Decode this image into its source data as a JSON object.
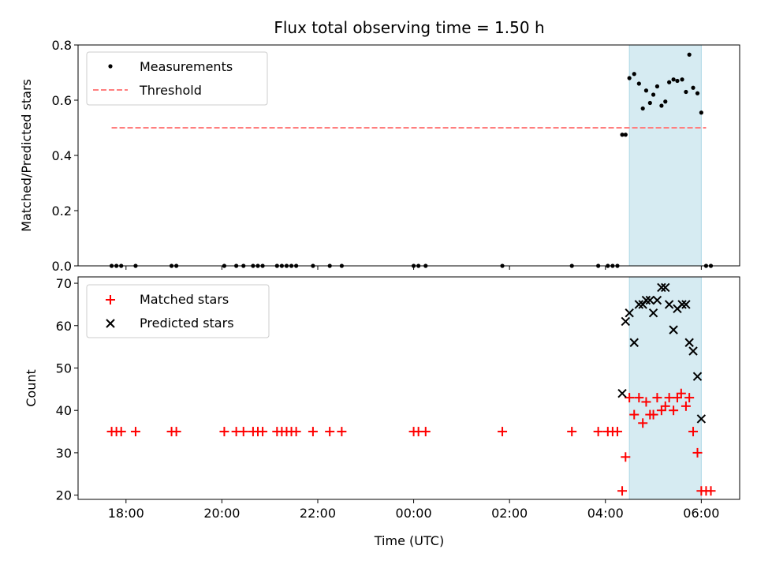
{
  "chart_data": [
    {
      "type": "scatter",
      "title": "Flux total observing time = 1.50 h",
      "xlabel": "",
      "ylabel": "Matched/Predicted stars",
      "ylim": [
        0,
        0.8
      ],
      "yticks": [
        "0.0",
        "0.2",
        "0.4",
        "0.6",
        "0.8"
      ],
      "xlim_hours": [
        -7.0,
        6.8
      ],
      "shaded_span_hours": [
        4.5,
        6.0
      ],
      "shade_color": "#add8e6",
      "legend": {
        "placement": "upper-left",
        "entries": [
          "Measurements",
          "Threshold"
        ]
      },
      "threshold": {
        "name": "Threshold",
        "value": 0.5,
        "x_range_hours": [
          -6.3,
          6.1
        ],
        "color": "#ff7f7f"
      },
      "series": [
        {
          "name": "Measurements",
          "color": "#000000",
          "points": [
            [
              -6.3,
              0
            ],
            [
              -6.2,
              0
            ],
            [
              -6.1,
              0
            ],
            [
              -5.8,
              0
            ],
            [
              -5.05,
              0
            ],
            [
              -4.95,
              0
            ],
            [
              -3.95,
              0
            ],
            [
              -3.7,
              0
            ],
            [
              -3.55,
              0
            ],
            [
              -3.35,
              0
            ],
            [
              -3.25,
              0
            ],
            [
              -3.15,
              0
            ],
            [
              -2.85,
              0
            ],
            [
              -2.75,
              0
            ],
            [
              -2.65,
              0
            ],
            [
              -2.55,
              0
            ],
            [
              -2.45,
              0
            ],
            [
              -2.1,
              0
            ],
            [
              -1.75,
              0
            ],
            [
              -1.5,
              0
            ],
            [
              0.0,
              0
            ],
            [
              0.1,
              0
            ],
            [
              0.25,
              0
            ],
            [
              1.85,
              0
            ],
            [
              3.3,
              0
            ],
            [
              3.85,
              0
            ],
            [
              4.05,
              0
            ],
            [
              4.15,
              0
            ],
            [
              4.25,
              0
            ],
            [
              4.35,
              0.475
            ],
            [
              4.42,
              0.475
            ],
            [
              4.5,
              0.68
            ],
            [
              4.6,
              0.695
            ],
            [
              4.7,
              0.66
            ],
            [
              4.78,
              0.57
            ],
            [
              4.85,
              0.635
            ],
            [
              4.93,
              0.59
            ],
            [
              5.0,
              0.62
            ],
            [
              5.08,
              0.65
            ],
            [
              5.17,
              0.58
            ],
            [
              5.25,
              0.595
            ],
            [
              5.33,
              0.665
            ],
            [
              5.42,
              0.675
            ],
            [
              5.5,
              0.67
            ],
            [
              5.6,
              0.675
            ],
            [
              5.68,
              0.63
            ],
            [
              5.75,
              0.765
            ],
            [
              5.83,
              0.645
            ],
            [
              5.92,
              0.625
            ],
            [
              6.0,
              0.555
            ],
            [
              6.1,
              0
            ],
            [
              6.2,
              0
            ]
          ]
        }
      ]
    },
    {
      "type": "scatter",
      "title": "",
      "xlabel": "Time (UTC)",
      "ylabel": "Count",
      "ylim": [
        19,
        71.5
      ],
      "yticks": [
        "20",
        "30",
        "40",
        "50",
        "60",
        "70"
      ],
      "xticks": [
        "18:00",
        "20:00",
        "22:00",
        "00:00",
        "02:00",
        "04:00",
        "06:00"
      ],
      "legend": {
        "placement": "upper-left",
        "entries": [
          "Matched stars",
          "Predicted stars"
        ]
      },
      "series": [
        {
          "name": "Matched stars",
          "marker": "plus",
          "color": "#ff0000",
          "points": [
            [
              -6.3,
              35
            ],
            [
              -6.2,
              35
            ],
            [
              -6.1,
              35
            ],
            [
              -5.8,
              35
            ],
            [
              -5.05,
              35
            ],
            [
              -4.95,
              35
            ],
            [
              -3.95,
              35
            ],
            [
              -3.7,
              35
            ],
            [
              -3.55,
              35
            ],
            [
              -3.35,
              35
            ],
            [
              -3.25,
              35
            ],
            [
              -3.15,
              35
            ],
            [
              -2.85,
              35
            ],
            [
              -2.75,
              35
            ],
            [
              -2.65,
              35
            ],
            [
              -2.55,
              35
            ],
            [
              -2.45,
              35
            ],
            [
              -2.1,
              35
            ],
            [
              -1.75,
              35
            ],
            [
              -1.5,
              35
            ],
            [
              0.0,
              35
            ],
            [
              0.1,
              35
            ],
            [
              0.25,
              35
            ],
            [
              1.85,
              35
            ],
            [
              3.3,
              35
            ],
            [
              3.85,
              35
            ],
            [
              4.05,
              35
            ],
            [
              4.15,
              35
            ],
            [
              4.25,
              35
            ],
            [
              4.35,
              21
            ],
            [
              4.42,
              29
            ],
            [
              4.5,
              43
            ],
            [
              4.6,
              39
            ],
            [
              4.7,
              43
            ],
            [
              4.78,
              37
            ],
            [
              4.85,
              42
            ],
            [
              4.93,
              39
            ],
            [
              5.0,
              39
            ],
            [
              5.08,
              43
            ],
            [
              5.17,
              40
            ],
            [
              5.25,
              41
            ],
            [
              5.33,
              43
            ],
            [
              5.42,
              40
            ],
            [
              5.5,
              43
            ],
            [
              5.58,
              44
            ],
            [
              5.68,
              41
            ],
            [
              5.75,
              43
            ],
            [
              5.83,
              35
            ],
            [
              5.92,
              30
            ],
            [
              6.0,
              21
            ],
            [
              6.1,
              21
            ],
            [
              6.2,
              21
            ]
          ]
        },
        {
          "name": "Predicted stars",
          "marker": "x",
          "color": "#000000",
          "points": [
            [
              4.35,
              44
            ],
            [
              4.42,
              61
            ],
            [
              4.5,
              63
            ],
            [
              4.6,
              56
            ],
            [
              4.7,
              65
            ],
            [
              4.78,
              65
            ],
            [
              4.85,
              66
            ],
            [
              4.93,
              66
            ],
            [
              5.0,
              63
            ],
            [
              5.08,
              66
            ],
            [
              5.17,
              69
            ],
            [
              5.25,
              69
            ],
            [
              5.33,
              65
            ],
            [
              5.42,
              59
            ],
            [
              5.5,
              64
            ],
            [
              5.6,
              65
            ],
            [
              5.68,
              65
            ],
            [
              5.75,
              56
            ],
            [
              5.83,
              54
            ],
            [
              5.92,
              48
            ],
            [
              6.0,
              38
            ]
          ]
        }
      ]
    }
  ]
}
